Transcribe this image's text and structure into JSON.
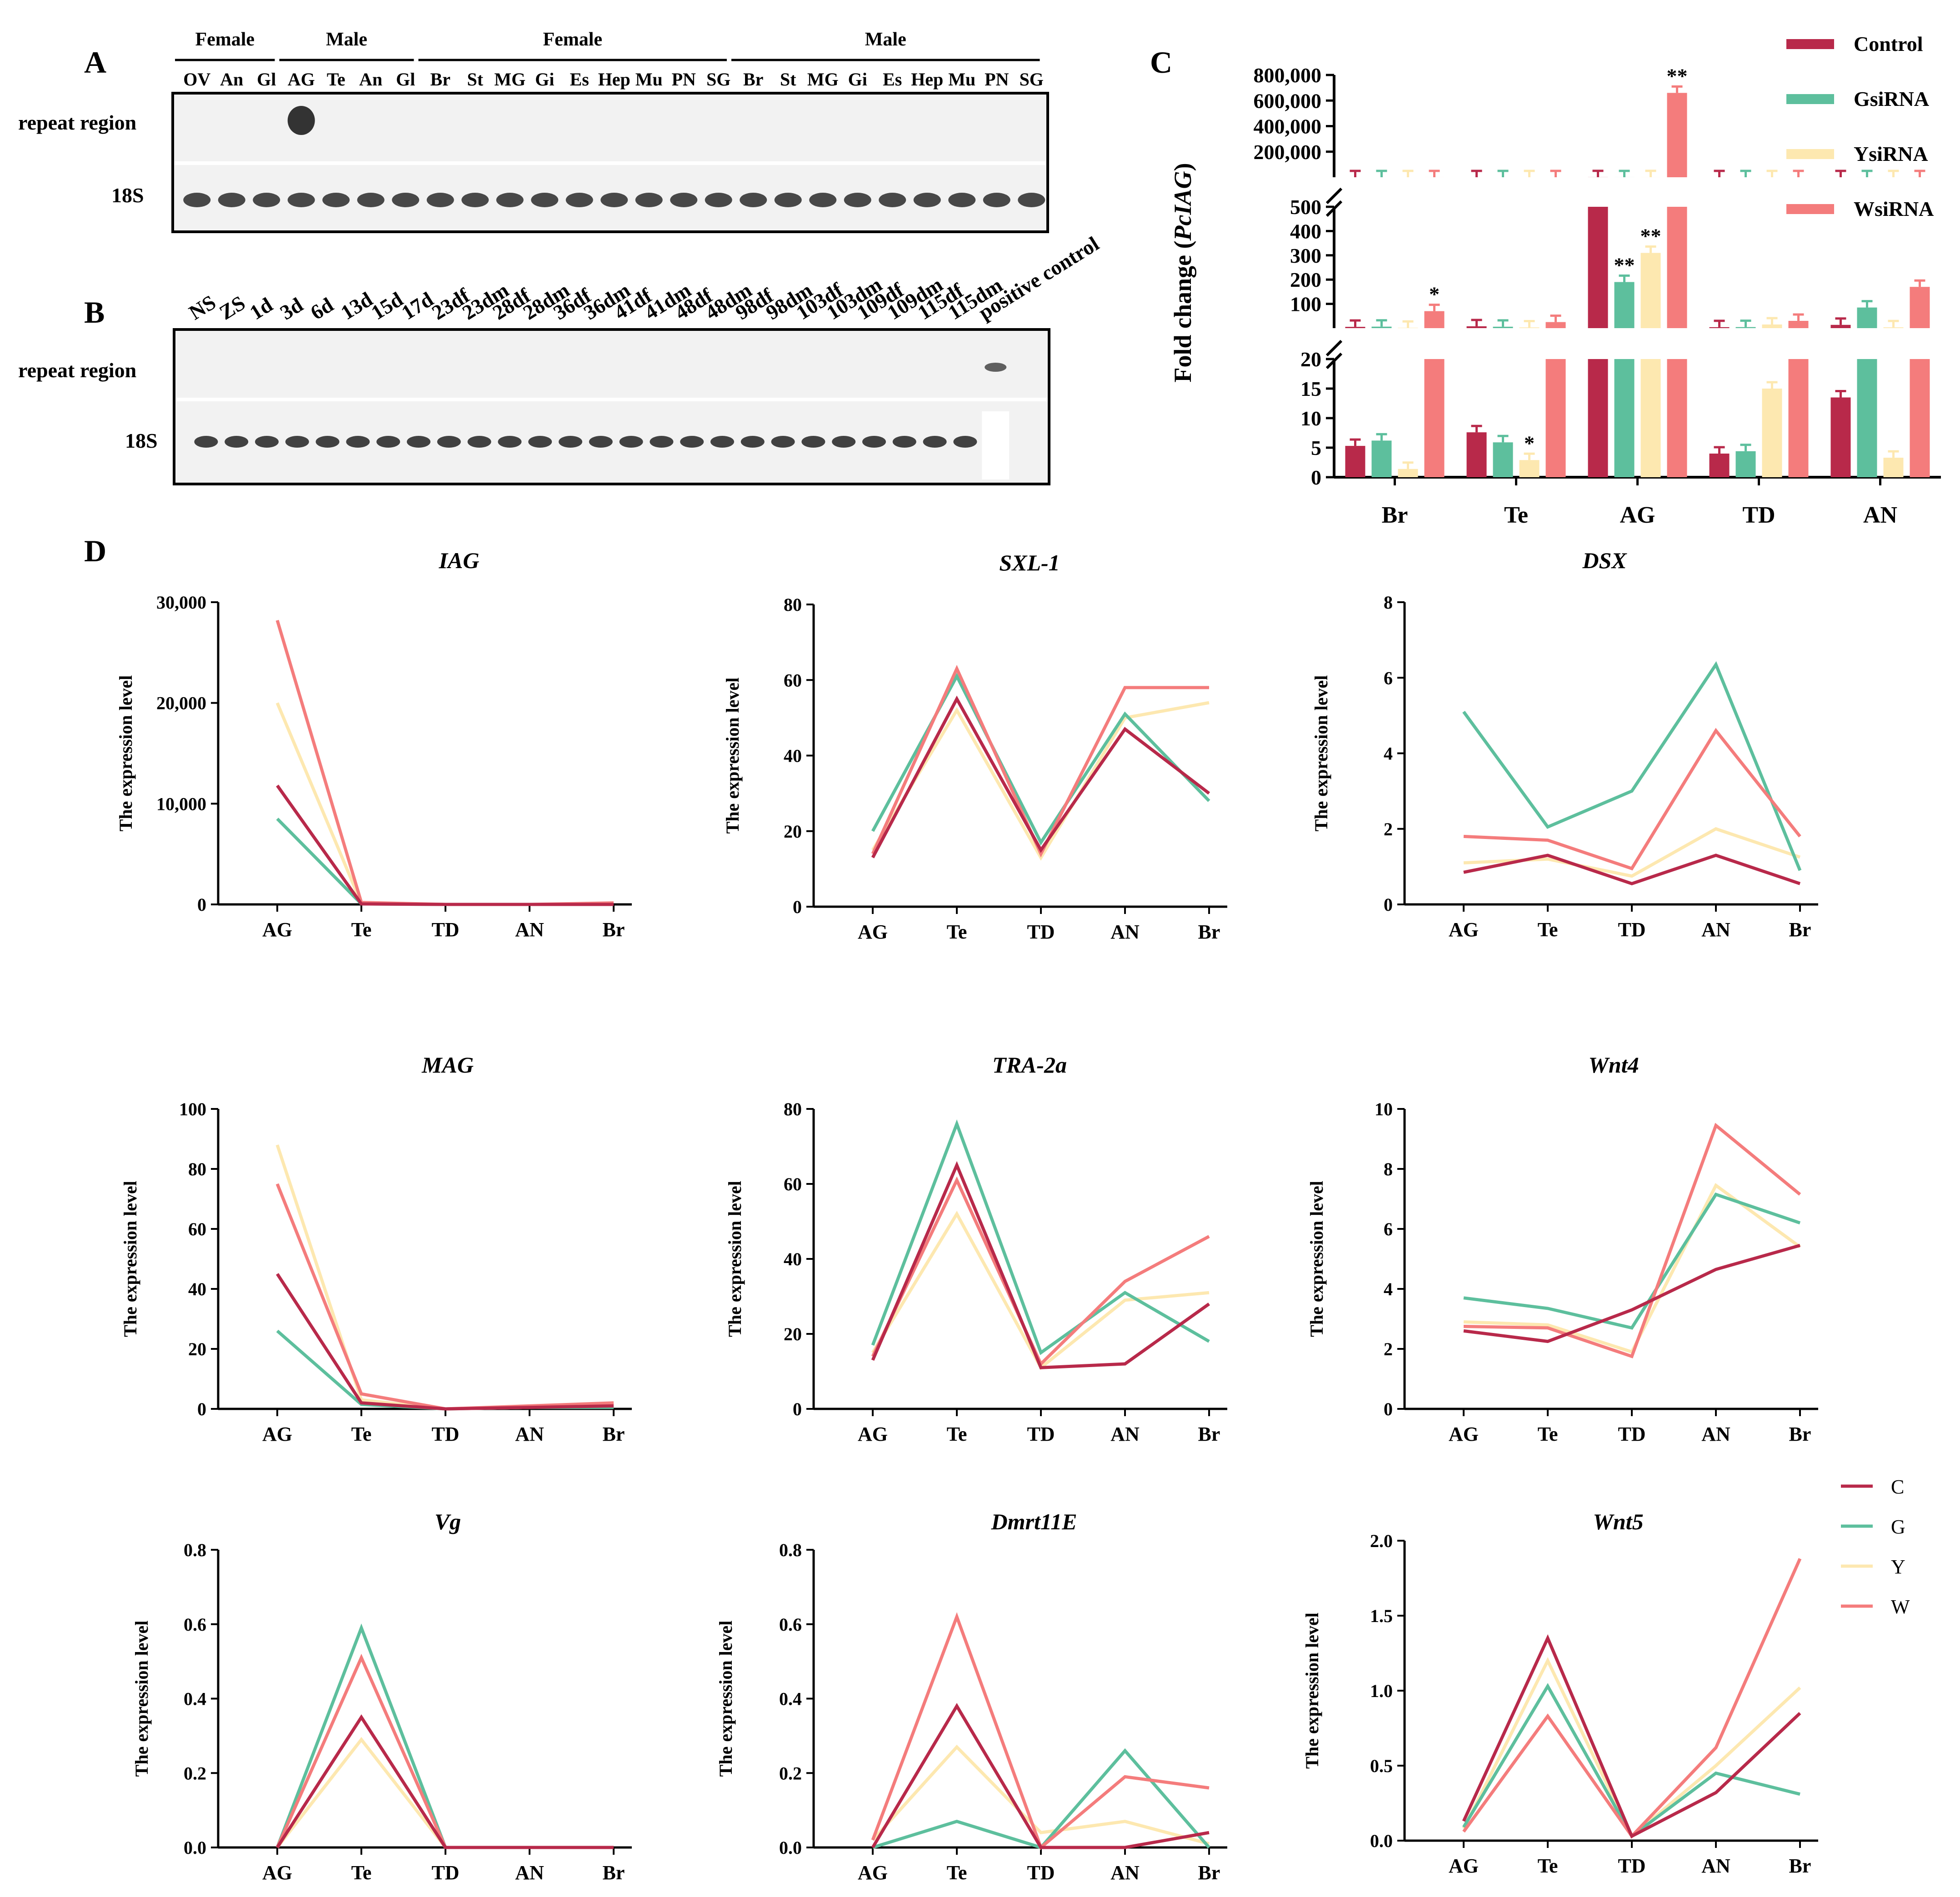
{
  "panel_labels": {
    "a": "A",
    "b": "B",
    "c": "C",
    "d": "D"
  },
  "colors": {
    "C": "#b8294a",
    "G": "#5dbf9d",
    "Y": "#fde8b0",
    "W": "#f47c7c",
    "ink": "#000000"
  },
  "gel_a": {
    "groups": [
      "Female",
      "Male",
      "Female",
      "Male"
    ],
    "lanes": [
      "OV",
      "An",
      "Gl",
      "AG",
      "Te",
      "An",
      "Gl",
      "Br",
      "St",
      "MG",
      "Gi",
      "Es",
      "Hep",
      "Mu",
      "PN",
      "SG",
      "Br",
      "St",
      "MG",
      "Gi",
      "Es",
      "Hep",
      "Mu",
      "PN",
      "SG"
    ],
    "row_labels": [
      "repeat region",
      "18S"
    ]
  },
  "gel_b": {
    "lanes": [
      "NS",
      "ZS",
      "1d",
      "3d",
      "6d",
      "13d",
      "15d",
      "17d",
      "23df",
      "23dm",
      "28df",
      "28dm",
      "36df",
      "36dm",
      "41df",
      "41dm",
      "48df",
      "48dm",
      "98df",
      "98dm",
      "103df",
      "103dm",
      "109df",
      "109dm",
      "115df",
      "115dm",
      "positive control"
    ],
    "row_labels": [
      "repeat region",
      "18S"
    ]
  },
  "chart_data": [
    {
      "id": "C",
      "type": "bar",
      "title": "",
      "ylabel_prefix": "Fold change (",
      "ylabel_gene": "PcIAG",
      "ylabel_suffix": ")",
      "xlabel": "",
      "categories": [
        "Br",
        "Te",
        "AG",
        "TD",
        "AN"
      ],
      "ylim_segments": [
        [
          0,
          20
        ],
        [
          0,
          500
        ],
        [
          0,
          800000
        ]
      ],
      "yticks": [
        "0",
        "5",
        "10",
        "15",
        "20",
        "100",
        "200",
        "300",
        "400",
        "500",
        "200,000",
        "400,000",
        "600,000",
        "800,000"
      ],
      "series": [
        {
          "name": "Control",
          "values": [
            5.3,
            7.6,
            500,
            4.0,
            13.5
          ]
        },
        {
          "name": "GsiRNA",
          "values": [
            6.2,
            5.9,
            190,
            4.4,
            85
          ]
        },
        {
          "name": "YsiRNA",
          "values": [
            1.4,
            2.9,
            310,
            15,
            3.3
          ]
        },
        {
          "name": "WsiRNA",
          "values": [
            70,
            25,
            660000,
            30,
            170
          ]
        }
      ],
      "annotations": [
        {
          "category": "Br",
          "series": "WsiRNA",
          "text": "*"
        },
        {
          "category": "Te",
          "series": "YsiRNA",
          "text": "*"
        },
        {
          "category": "AG",
          "series": "GsiRNA",
          "text": "**"
        },
        {
          "category": "AG",
          "series": "YsiRNA",
          "text": "**"
        },
        {
          "category": "AG",
          "series": "WsiRNA",
          "text": "**"
        }
      ],
      "legend": [
        "Control",
        "GsiRNA",
        "YsiRNA",
        "WsiRNA"
      ]
    },
    {
      "id": "IAG",
      "type": "line",
      "title": "IAG",
      "ylabel": "The expression level",
      "categories": [
        "AG",
        "Te",
        "TD",
        "AN",
        "Br"
      ],
      "ylim": [
        0,
        30000
      ],
      "yticks": [
        "0",
        "10,000",
        "20,000",
        "30,000"
      ],
      "series": [
        {
          "name": "C",
          "values": [
            11800,
            50,
            0,
            0,
            0
          ]
        },
        {
          "name": "G",
          "values": [
            8500,
            50,
            0,
            0,
            0
          ]
        },
        {
          "name": "Y",
          "values": [
            20000,
            100,
            0,
            0,
            0
          ]
        },
        {
          "name": "W",
          "values": [
            28200,
            200,
            0,
            0,
            150
          ]
        }
      ]
    },
    {
      "id": "SXL-1",
      "type": "line",
      "title": "SXL-1",
      "ylabel": "The expression level",
      "categories": [
        "AG",
        "Te",
        "TD",
        "AN",
        "Br"
      ],
      "ylim": [
        0,
        80
      ],
      "yticks": [
        "0",
        "20",
        "40",
        "60",
        "80"
      ],
      "series": [
        {
          "name": "C",
          "values": [
            13,
            55,
            15,
            47,
            30
          ]
        },
        {
          "name": "G",
          "values": [
            20,
            61,
            17,
            51,
            28
          ]
        },
        {
          "name": "Y",
          "values": [
            15,
            52,
            13,
            50,
            54
          ]
        },
        {
          "name": "W",
          "values": [
            14,
            63,
            14,
            58,
            58
          ]
        }
      ]
    },
    {
      "id": "DSX",
      "type": "line",
      "title": "DSX",
      "ylabel": "The expression level",
      "categories": [
        "AG",
        "Te",
        "TD",
        "AN",
        "Br"
      ],
      "ylim": [
        0,
        8
      ],
      "yticks": [
        "0",
        "2",
        "4",
        "6",
        "8"
      ],
      "series": [
        {
          "name": "C",
          "values": [
            0.85,
            1.3,
            0.55,
            1.3,
            0.55
          ]
        },
        {
          "name": "G",
          "values": [
            5.1,
            2.05,
            3.0,
            6.35,
            0.9
          ]
        },
        {
          "name": "Y",
          "values": [
            1.1,
            1.2,
            0.75,
            2.0,
            1.25
          ]
        },
        {
          "name": "W",
          "values": [
            1.8,
            1.7,
            0.95,
            4.6,
            1.8
          ]
        }
      ]
    },
    {
      "id": "MAG",
      "type": "line",
      "title": "MAG",
      "ylabel": "The expression level",
      "categories": [
        "AG",
        "Te",
        "TD",
        "AN",
        "Br"
      ],
      "ylim": [
        0,
        100
      ],
      "yticks": [
        "0",
        "20",
        "40",
        "60",
        "80",
        "100"
      ],
      "series": [
        {
          "name": "C",
          "values": [
            45,
            2,
            0,
            0.5,
            1
          ]
        },
        {
          "name": "G",
          "values": [
            26,
            1.5,
            0,
            0.5,
            0.5
          ]
        },
        {
          "name": "Y",
          "values": [
            88,
            3,
            0,
            0.5,
            1
          ]
        },
        {
          "name": "W",
          "values": [
            75,
            5,
            0,
            1,
            2
          ]
        }
      ]
    },
    {
      "id": "TRA-2a",
      "type": "line",
      "title": "TRA-2a",
      "ylabel": "The expression level",
      "categories": [
        "AG",
        "Te",
        "TD",
        "AN",
        "Br"
      ],
      "ylim": [
        0,
        80
      ],
      "yticks": [
        "0",
        "20",
        "40",
        "60",
        "80"
      ],
      "series": [
        {
          "name": "C",
          "values": [
            13,
            65,
            11,
            12,
            28
          ]
        },
        {
          "name": "G",
          "values": [
            17,
            76,
            15,
            31,
            18
          ]
        },
        {
          "name": "Y",
          "values": [
            15,
            52,
            11,
            29,
            31
          ]
        },
        {
          "name": "W",
          "values": [
            14,
            61,
            12,
            34,
            46
          ]
        }
      ]
    },
    {
      "id": "Wnt4",
      "type": "line",
      "title": "Wnt4",
      "ylabel": "The expression level",
      "categories": [
        "AG",
        "Te",
        "TD",
        "AN",
        "Br"
      ],
      "ylim": [
        0,
        10
      ],
      "yticks": [
        "0",
        "2",
        "4",
        "6",
        "8",
        "10"
      ],
      "series": [
        {
          "name": "C",
          "values": [
            2.6,
            2.25,
            3.3,
            4.65,
            5.45
          ]
        },
        {
          "name": "G",
          "values": [
            3.7,
            3.35,
            2.7,
            7.15,
            6.2
          ]
        },
        {
          "name": "Y",
          "values": [
            2.9,
            2.8,
            1.9,
            7.45,
            5.4
          ]
        },
        {
          "name": "W",
          "values": [
            2.75,
            2.7,
            1.75,
            9.45,
            7.15
          ]
        }
      ]
    },
    {
      "id": "Vg",
      "type": "line",
      "title": "Vg",
      "ylabel": "The expression level",
      "categories": [
        "AG",
        "Te",
        "TD",
        "AN",
        "Br"
      ],
      "ylim": [
        0,
        0.8
      ],
      "yticks": [
        "0.0",
        "0.2",
        "0.4",
        "0.6",
        "0.8"
      ],
      "series": [
        {
          "name": "C",
          "values": [
            0,
            0.35,
            0,
            0,
            0
          ]
        },
        {
          "name": "G",
          "values": [
            0,
            0.59,
            0,
            0,
            0
          ]
        },
        {
          "name": "Y",
          "values": [
            0,
            0.29,
            0,
            0,
            0
          ]
        },
        {
          "name": "W",
          "values": [
            0,
            0.51,
            0,
            0,
            0
          ]
        }
      ]
    },
    {
      "id": "Dmrt11E",
      "type": "line",
      "title": "Dmrt11E",
      "ylabel": "The expression level",
      "categories": [
        "AG",
        "Te",
        "TD",
        "AN",
        "Br"
      ],
      "ylim": [
        0,
        0.8
      ],
      "yticks": [
        "0.0",
        "0.2",
        "0.4",
        "0.6",
        "0.8"
      ],
      "series": [
        {
          "name": "C",
          "values": [
            0.0,
            0.38,
            0.0,
            0.0,
            0.04
          ]
        },
        {
          "name": "G",
          "values": [
            0.0,
            0.07,
            0.0,
            0.26,
            0.0
          ]
        },
        {
          "name": "Y",
          "values": [
            0.02,
            0.27,
            0.04,
            0.07,
            0.01
          ]
        },
        {
          "name": "W",
          "values": [
            0.02,
            0.62,
            0.0,
            0.19,
            0.16
          ]
        }
      ]
    },
    {
      "id": "Wnt5",
      "type": "line",
      "title": "Wnt5",
      "ylabel": "The expression level",
      "categories": [
        "AG",
        "Te",
        "TD",
        "AN",
        "Br"
      ],
      "ylim": [
        0,
        2.0
      ],
      "yticks": [
        "0.0",
        "0.5",
        "1.0",
        "1.5",
        "2.0"
      ],
      "series": [
        {
          "name": "C",
          "values": [
            0.13,
            1.35,
            0.03,
            0.32,
            0.85
          ]
        },
        {
          "name": "G",
          "values": [
            0.09,
            1.03,
            0.03,
            0.45,
            0.31
          ]
        },
        {
          "name": "Y",
          "values": [
            0.08,
            1.2,
            0.03,
            0.5,
            1.02
          ]
        },
        {
          "name": "W",
          "values": [
            0.06,
            0.83,
            0.03,
            0.62,
            1.88
          ]
        }
      ]
    }
  ],
  "line_legend": [
    "C",
    "G",
    "Y",
    "W"
  ]
}
